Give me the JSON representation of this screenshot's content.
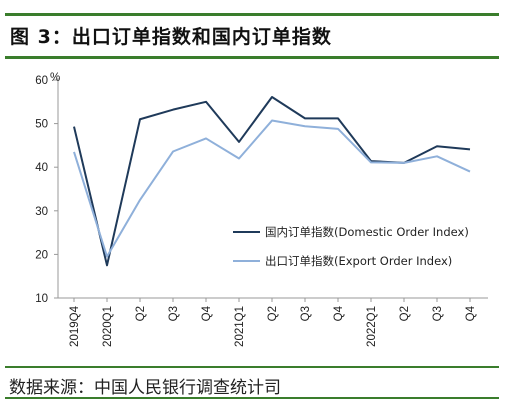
{
  "header": {
    "title": "图 3：出口订单指数和国内订单指数"
  },
  "footer": {
    "source": "数据来源：中国人民银行调查统计司"
  },
  "colors": {
    "rule": "#3a7d2c",
    "domestic": "#1f3a5a",
    "export": "#8fb0da"
  },
  "chart_data": {
    "type": "line",
    "ylabel": "%",
    "ylim": [
      10,
      60
    ],
    "yticks": [
      10,
      20,
      30,
      40,
      50,
      60
    ],
    "grid": false,
    "legend_position": "right",
    "categories": [
      "2019Q4",
      "2020Q1",
      "Q2",
      "Q3",
      "Q4",
      "2021Q1",
      "Q2",
      "Q3",
      "Q4",
      "2022Q1",
      "Q2",
      "Q3",
      "Q4"
    ],
    "series": [
      {
        "name": "国内订单指数(Domestic Order Index)",
        "values": [
          49.3,
          17.5,
          51.0,
          53.2,
          55.0,
          45.8,
          56.1,
          51.2,
          51.2,
          41.4,
          41.0,
          44.8,
          44.1
        ]
      },
      {
        "name": "出口订单指数(Export Order Index)",
        "values": [
          43.5,
          19.5,
          32.5,
          43.6,
          46.6,
          42.0,
          50.7,
          49.4,
          48.8,
          41.1,
          41.0,
          42.5,
          39.0
        ]
      }
    ]
  }
}
